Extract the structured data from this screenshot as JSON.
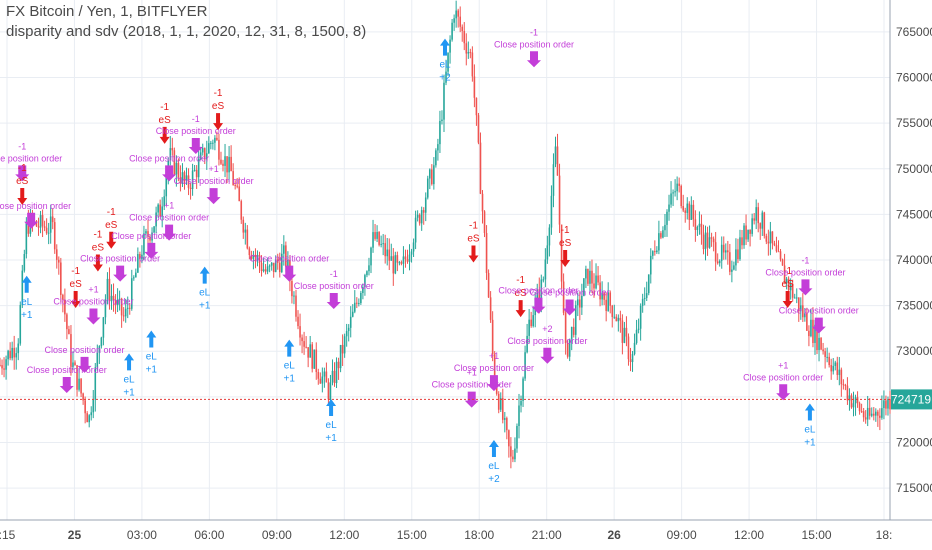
{
  "header": {
    "symbol_line": "FX Bitcoin / Yen, 1, BITFLYER",
    "strategy_line": "disparity and sdv (2018, 1, 1, 2020, 12, 31, 8, 1500, 8)"
  },
  "chart_data": {
    "type": "candlestick",
    "y_axis": {
      "ticks": [
        "765000",
        "760000",
        "755000",
        "750000",
        "745000",
        "740000",
        "735000",
        "730000",
        "725000",
        "720000",
        "715000"
      ],
      "tick_values": [
        765000,
        760000,
        755000,
        750000,
        745000,
        740000,
        735000,
        730000,
        725000,
        720000,
        715000
      ],
      "range": [
        711500,
        768500
      ]
    },
    "x_axis": {
      "ticks": [
        ":15",
        "25",
        "03:00",
        "06:00",
        "09:00",
        "12:00",
        "15:00",
        "18:00",
        "21:00",
        "26",
        "09:00",
        "12:00",
        "15:00",
        "18:"
      ],
      "bold_ticks": [
        "25",
        "26"
      ]
    },
    "last_price": {
      "label": "724719",
      "value": 724719
    },
    "price_path": [
      [
        0,
        728500
      ],
      [
        0.02,
        731000
      ],
      [
        0.03,
        744000
      ],
      [
        0.06,
        743500
      ],
      [
        0.08,
        729000
      ],
      [
        0.1,
        722500
      ],
      [
        0.12,
        737000
      ],
      [
        0.14,
        733500
      ],
      [
        0.16,
        741500
      ],
      [
        0.18,
        745500
      ],
      [
        0.19,
        751500
      ],
      [
        0.21,
        748000
      ],
      [
        0.24,
        753500
      ],
      [
        0.26,
        749500
      ],
      [
        0.28,
        741500
      ],
      [
        0.3,
        738500
      ],
      [
        0.32,
        740500
      ],
      [
        0.34,
        731500
      ],
      [
        0.37,
        725500
      ],
      [
        0.4,
        735000
      ],
      [
        0.42,
        742500
      ],
      [
        0.45,
        738500
      ],
      [
        0.47,
        744500
      ],
      [
        0.49,
        751000
      ],
      [
        0.51,
        767500
      ],
      [
        0.53,
        762000
      ],
      [
        0.545,
        741500
      ],
      [
        0.555,
        727500
      ],
      [
        0.575,
        717500
      ],
      [
        0.595,
        733500
      ],
      [
        0.61,
        737500
      ],
      [
        0.625,
        752500
      ],
      [
        0.635,
        729500
      ],
      [
        0.66,
        738500
      ],
      [
        0.69,
        734500
      ],
      [
        0.71,
        729000
      ],
      [
        0.735,
        741500
      ],
      [
        0.76,
        748000
      ],
      [
        0.79,
        742500
      ],
      [
        0.82,
        739500
      ],
      [
        0.85,
        745500
      ],
      [
        0.88,
        738500
      ],
      [
        0.905,
        733500
      ],
      [
        0.93,
        729500
      ],
      [
        0.955,
        725000
      ],
      [
        0.975,
        722500
      ],
      [
        1.0,
        724700
      ]
    ],
    "annotations": [
      {
        "kind": "close",
        "x": 0.025,
        "y": 749500,
        "text": "Close position order",
        "qty": "-1"
      },
      {
        "kind": "short",
        "x": 0.025,
        "y": 746800,
        "text": "eS",
        "qty": "-1"
      },
      {
        "kind": "close",
        "x": 0.035,
        "y": 744300,
        "text": "Close position order",
        "qty": ""
      },
      {
        "kind": "long",
        "x": 0.03,
        "y": 737500,
        "text": "eL",
        "qty": "+1"
      },
      {
        "kind": "short",
        "x": 0.085,
        "y": 735500,
        "text": "eS",
        "qty": "-1"
      },
      {
        "kind": "close",
        "x": 0.105,
        "y": 733800,
        "text": "Close position order",
        "qty": "+1"
      },
      {
        "kind": "close",
        "x": 0.095,
        "y": 728500,
        "text": "Close position order",
        "qty": ""
      },
      {
        "kind": "close",
        "x": 0.075,
        "y": 726300,
        "text": "Close position order",
        "qty": ""
      },
      {
        "kind": "short",
        "x": 0.11,
        "y": 739500,
        "text": "eS",
        "qty": "-1"
      },
      {
        "kind": "short",
        "x": 0.125,
        "y": 742000,
        "text": "eS",
        "qty": "-1"
      },
      {
        "kind": "close",
        "x": 0.135,
        "y": 738500,
        "text": "Close position order",
        "qty": ""
      },
      {
        "kind": "long",
        "x": 0.145,
        "y": 729000,
        "text": "eL",
        "qty": "+1"
      },
      {
        "kind": "long",
        "x": 0.17,
        "y": 731500,
        "text": "eL",
        "qty": "+1"
      },
      {
        "kind": "close",
        "x": 0.17,
        "y": 741000,
        "text": "Close position order",
        "qty": ""
      },
      {
        "kind": "short",
        "x": 0.185,
        "y": 753500,
        "text": "eS",
        "qty": "-1"
      },
      {
        "kind": "close",
        "x": 0.19,
        "y": 749500,
        "text": "Close position order",
        "qty": ""
      },
      {
        "kind": "close",
        "x": 0.22,
        "y": 752500,
        "text": "Close position order",
        "qty": "-1"
      },
      {
        "kind": "short",
        "x": 0.245,
        "y": 755000,
        "text": "eS",
        "qty": "-1"
      },
      {
        "kind": "close",
        "x": 0.24,
        "y": 747000,
        "text": "Close position order",
        "qty": "+1"
      },
      {
        "kind": "close",
        "x": 0.19,
        "y": 743000,
        "text": "Close position order",
        "qty": "+1"
      },
      {
        "kind": "long",
        "x": 0.23,
        "y": 738500,
        "text": "eL",
        "qty": "+1"
      },
      {
        "kind": "close",
        "x": 0.325,
        "y": 738500,
        "text": "Close position order",
        "qty": ""
      },
      {
        "kind": "long",
        "x": 0.325,
        "y": 730500,
        "text": "eL",
        "qty": "+1"
      },
      {
        "kind": "close",
        "x": 0.375,
        "y": 735500,
        "text": "Close position order",
        "qty": "-1"
      },
      {
        "kind": "long",
        "x": 0.372,
        "y": 724000,
        "text": "eL",
        "qty": "+1"
      },
      {
        "kind": "long",
        "x": 0.5,
        "y": 763500,
        "text": "eL",
        "qty": "+2"
      },
      {
        "kind": "short",
        "x": 0.532,
        "y": 740500,
        "text": "eS",
        "qty": "-1"
      },
      {
        "kind": "close",
        "x": 0.53,
        "y": 724700,
        "text": "Close position order",
        "qty": "+1"
      },
      {
        "kind": "close",
        "x": 0.555,
        "y": 726500,
        "text": "Close position order",
        "qty": "+1"
      },
      {
        "kind": "long",
        "x": 0.555,
        "y": 719500,
        "text": "eL",
        "qty": "+2"
      },
      {
        "kind": "close",
        "x": 0.6,
        "y": 762000,
        "text": "Close position order",
        "qty": "-1"
      },
      {
        "kind": "short",
        "x": 0.585,
        "y": 734500,
        "text": "eS",
        "qty": "-1"
      },
      {
        "kind": "close",
        "x": 0.605,
        "y": 735000,
        "text": "Close position order",
        "qty": ""
      },
      {
        "kind": "close",
        "x": 0.615,
        "y": 729500,
        "text": "Close position order",
        "qty": "+2"
      },
      {
        "kind": "short",
        "x": 0.635,
        "y": 740000,
        "text": "eS",
        "qty": "-1"
      },
      {
        "kind": "close",
        "x": 0.64,
        "y": 734800,
        "text": "Close position order",
        "qty": ""
      },
      {
        "kind": "short",
        "x": 0.885,
        "y": 735500,
        "text": "eS",
        "qty": "-1"
      },
      {
        "kind": "close",
        "x": 0.905,
        "y": 737000,
        "text": "Close position order",
        "qty": "-1"
      },
      {
        "kind": "close",
        "x": 0.92,
        "y": 732800,
        "text": "Close position order",
        "qty": ""
      },
      {
        "kind": "close",
        "x": 0.88,
        "y": 725500,
        "text": "Close position order",
        "qty": "+1"
      },
      {
        "kind": "long",
        "x": 0.91,
        "y": 723500,
        "text": "eL",
        "qty": "+1"
      }
    ],
    "colors": {
      "up": "#26a69a",
      "down": "#ef5350",
      "short_arrow": "#e31b1b",
      "long_arrow": "#2196f3",
      "close_marker": "#c33ed8",
      "price_line": "#e53935",
      "price_badge": "#26a69a",
      "grid": "#e9edf3",
      "axis_text": "#4a4a4a"
    },
    "grid": true
  }
}
